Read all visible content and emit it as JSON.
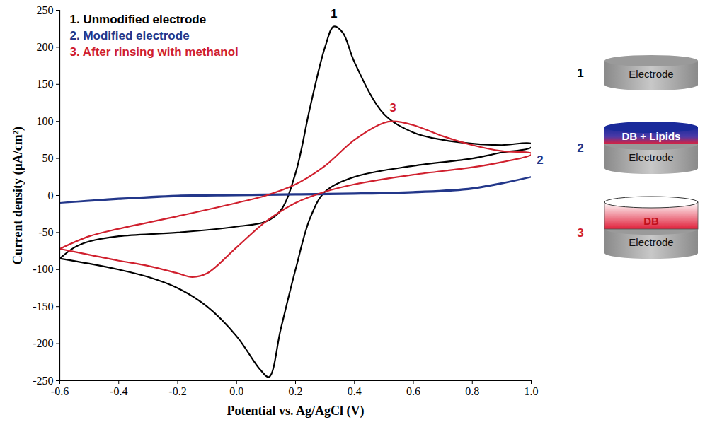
{
  "chart_data": {
    "type": "line",
    "xlabel": "Potential vs. Ag/AgCl (V)",
    "ylabel": "Current density (μA/cm²)",
    "xlim": [
      -0.6,
      1.0
    ],
    "xticks": [
      -0.6,
      -0.4,
      -0.2,
      {
        "value": 0,
        "label": "0.0"
      },
      0.2,
      0.4,
      0.6,
      0.8,
      {
        "value": 1,
        "label": "1.0"
      }
    ],
    "ylim": [
      -250,
      250
    ],
    "yticks": [
      -250,
      -200,
      -150,
      -100,
      -50,
      0,
      50,
      100,
      150,
      200,
      250
    ],
    "grid": false,
    "legend": "top-left",
    "series": [
      {
        "name": "1. Unmodified electrode",
        "color": "#000000",
        "x": [
          -0.6,
          -0.55,
          -0.5,
          -0.4,
          -0.2,
          0.0,
          0.1,
          0.15,
          0.2,
          0.25,
          0.3,
          0.33,
          0.36,
          0.4,
          0.5,
          0.6,
          0.7,
          0.8,
          0.9,
          1.0,
          1.0,
          0.9,
          0.8,
          0.6,
          0.4,
          0.3,
          0.25,
          0.2,
          0.15,
          0.11,
          0.08,
          0.0,
          -0.1,
          -0.2,
          -0.3,
          -0.4,
          -0.5,
          -0.6
        ],
        "values": [
          -85,
          -70,
          -62,
          -55,
          -50,
          -42,
          -35,
          -20,
          30,
          120,
          200,
          228,
          220,
          180,
          110,
          85,
          75,
          70,
          68,
          70,
          65,
          58,
          50,
          40,
          25,
          5,
          -30,
          -100,
          -180,
          -245,
          -235,
          -190,
          -150,
          -125,
          -110,
          -100,
          -92,
          -85
        ]
      },
      {
        "name": "2. Modified electrode",
        "color": "#23378a",
        "x": [
          -0.6,
          -0.4,
          -0.2,
          0.0,
          0.2,
          0.4,
          0.6,
          0.8,
          1.0,
          1.0,
          0.8,
          0.6,
          0.4,
          0.2,
          0.0,
          -0.2,
          -0.4,
          -0.6
        ],
        "values": [
          -10,
          -4,
          0,
          1,
          2,
          3,
          5,
          10,
          25,
          25,
          9,
          4,
          2,
          1,
          0,
          -1,
          -5,
          -10
        ]
      },
      {
        "name": "3. After rinsing with methanol",
        "color": "#d0202e",
        "x": [
          -0.6,
          -0.5,
          -0.4,
          -0.2,
          0.0,
          0.1,
          0.2,
          0.3,
          0.4,
          0.5,
          0.53,
          0.6,
          0.7,
          0.8,
          0.9,
          1.0,
          1.0,
          0.9,
          0.8,
          0.6,
          0.4,
          0.3,
          0.2,
          0.1,
          0.0,
          -0.1,
          -0.15,
          -0.2,
          -0.3,
          -0.4,
          -0.5,
          -0.6
        ],
        "values": [
          -72,
          -55,
          -45,
          -28,
          -10,
          0,
          15,
          40,
          75,
          98,
          100,
          95,
          80,
          68,
          60,
          57,
          55,
          45,
          38,
          28,
          15,
          5,
          -10,
          -35,
          -70,
          -105,
          -110,
          -105,
          -95,
          -88,
          -80,
          -72
        ]
      }
    ],
    "annotations": [
      {
        "text": "1",
        "x": 0.33,
        "y": 240,
        "color": "#000000"
      },
      {
        "text": "2",
        "x": 1.03,
        "y": 42,
        "color": "#23378a"
      },
      {
        "text": "3",
        "x": 0.53,
        "y": 113,
        "color": "#d0202e"
      }
    ]
  },
  "schematic": [
    {
      "label": "1",
      "layers": [
        "Electrode"
      ]
    },
    {
      "label": "2",
      "layers": [
        "DB + Lipids",
        "Electrode"
      ]
    },
    {
      "label": "3",
      "layers": [
        "DB",
        "Electrode"
      ]
    }
  ]
}
